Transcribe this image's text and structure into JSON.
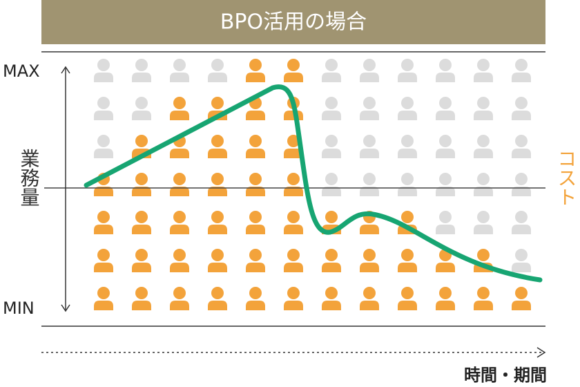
{
  "chart_data": {
    "type": "pictogram",
    "title": "BPO活用の場合",
    "y_max_label": "MAX",
    "y_min_label": "MIN",
    "y_axis_label": "業務量",
    "right_label": "コスト",
    "x_axis_label": "時間・期間",
    "values": [
      4,
      5,
      6,
      6,
      7,
      7,
      3,
      3,
      3,
      2,
      2,
      1
    ],
    "ylim": [
      0,
      7
    ],
    "color": "#f3a33b",
    "empty_color": "#dcdcdc",
    "curve_color": "#17a572"
  }
}
